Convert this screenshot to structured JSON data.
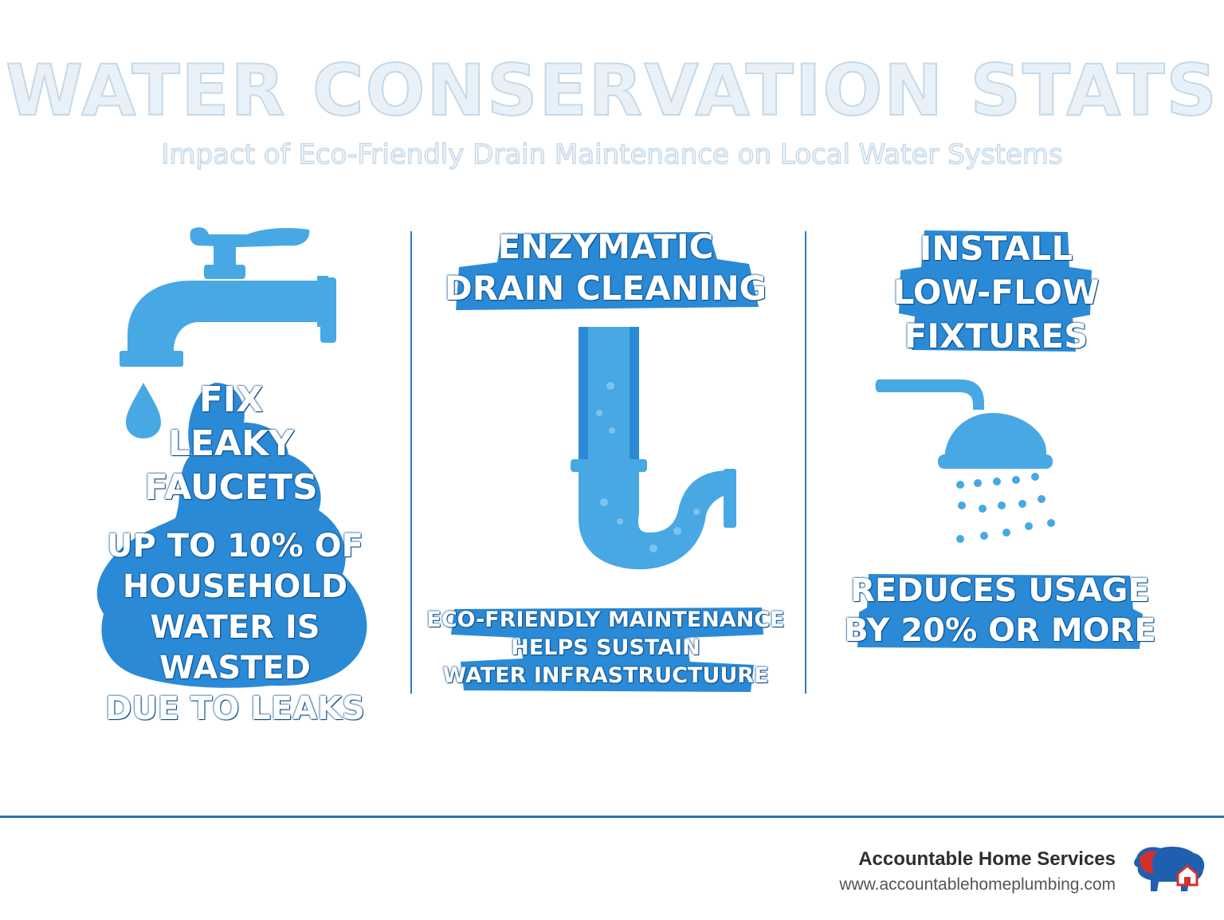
{
  "header": {
    "title": "WATER CONSERVATION STATS",
    "subtitle": "Impact of Eco-Friendly Drain Maintenance on Local Water Systems"
  },
  "columns": [
    {
      "heading_lines": [
        "FIX",
        "LEAKY",
        "FAUCETS"
      ],
      "stat_lines": [
        "UP TO 10% OF",
        "HOUSEHOLD",
        "WATER IS WASTED",
        "DUE TO LEAKS"
      ],
      "icon": "faucet-icon"
    },
    {
      "heading_lines": [
        "ENZYMATIC",
        "DRAIN CLEANING"
      ],
      "stat_lines": [
        "ECO-FRIENDLY MAINTENANCE",
        "HELPS SUSTAIN",
        "WATER INFRASTRUCTUURE"
      ],
      "icon": "drain-pipe-icon"
    },
    {
      "heading_lines": [
        "INSTALL",
        "LOW-FLOW",
        "FIXTURES"
      ],
      "stat_lines": [
        "REDUCES USAGE",
        "BY 20% OR MORE"
      ],
      "icon": "shower-head-icon"
    }
  ],
  "footer": {
    "company": "Accountable Home Services",
    "url": "www.accountablehomeplumbing.com",
    "logo": "bison-house-logo"
  },
  "colors": {
    "accent_blue": "#2b8ad6",
    "icon_blue": "#48a8e4",
    "dark_outline": "#0b4f8d",
    "logo_red": "#d32f2f",
    "logo_blue": "#1f5fb0"
  }
}
